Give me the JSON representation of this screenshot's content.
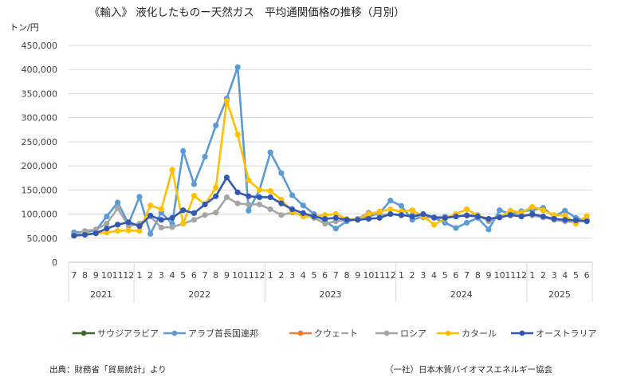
{
  "chart_data": {
    "type": "line",
    "title": "《輸入》 液化したものー天然ガス　平均通関価格の推移（月別）",
    "ylabel": "トン/円",
    "xlabel": "",
    "ylim": [
      0,
      450000
    ],
    "yticks": [
      "0",
      "50,000",
      "100,000",
      "150,000",
      "200,000",
      "250,000",
      "300,000",
      "350,000",
      "400,000",
      "450,000"
    ],
    "grid": "horizontal",
    "legend": "bottom",
    "year_groups": [
      {
        "label": "2021",
        "months": [
          "7",
          "8",
          "9",
          "10",
          "11",
          "12"
        ]
      },
      {
        "label": "2022",
        "months": [
          "1",
          "2",
          "3",
          "4",
          "5",
          "6",
          "7",
          "8",
          "9",
          "10",
          "11",
          "12"
        ]
      },
      {
        "label": "2023",
        "months": [
          "1",
          "2",
          "3",
          "4",
          "5",
          "6",
          "7",
          "8",
          "9",
          "10",
          "11",
          "12"
        ]
      },
      {
        "label": "2024",
        "months": [
          "1",
          "2",
          "3",
          "4",
          "5",
          "6",
          "7",
          "8",
          "9",
          "10",
          "11",
          "12"
        ]
      },
      {
        "label": "2025",
        "months": [
          "1",
          "2",
          "3",
          "4",
          "5",
          "6"
        ]
      }
    ],
    "series": [
      {
        "name": "サウジアラビア",
        "color": "#3e6b2a",
        "values": []
      },
      {
        "name": "アラブ首長国連邦",
        "color": "#5b9bd5",
        "values": [
          62000,
          63000,
          66000,
          95000,
          124000,
          80000,
          136000,
          59000,
          103000,
          80000,
          231000,
          162000,
          219000,
          284000,
          340000,
          405000,
          107000,
          150000,
          228000,
          185000,
          139000,
          118000,
          100000,
          85000,
          70000,
          85000,
          90000,
          95000,
          102000,
          128000,
          117000,
          88000,
          95000,
          92000,
          82000,
          71000,
          82000,
          92000,
          68000,
          108000,
          100000,
          106000,
          108000,
          113000,
          95000,
          107000,
          92000,
          86000
        ]
      },
      {
        "name": "クウェート",
        "color": "#ed7d31",
        "values": []
      },
      {
        "name": "ロシア",
        "color": "#a5a5a5",
        "values": [
          57000,
          65000,
          68000,
          80000,
          112000,
          75000,
          80000,
          95000,
          72000,
          73000,
          80000,
          88000,
          98000,
          103000,
          135000,
          122000,
          120000,
          120000,
          110000,
          98000,
          103000,
          98000,
          92000,
          80000,
          85000,
          87000,
          90000,
          103000,
          98000,
          100000,
          97000,
          98000,
          93000,
          93000,
          95000,
          95000,
          98000,
          98000,
          85000,
          95000,
          97000,
          98000,
          97000,
          93000,
          88000,
          85000,
          83000,
          88000
        ]
      },
      {
        "name": "カタール",
        "color": "#ffc000",
        "values": [
          55000,
          58000,
          60000,
          62000,
          65000,
          66000,
          65000,
          118000,
          110000,
          192000,
          80000,
          138000,
          120000,
          155000,
          335000,
          265000,
          170000,
          150000,
          148000,
          130000,
          105000,
          95000,
          95000,
          98000,
          100000,
          90000,
          88000,
          100000,
          105000,
          110000,
          105000,
          108000,
          95000,
          78000,
          90000,
          100000,
          110000,
          97000,
          90000,
          93000,
          107000,
          103000,
          115000,
          108000,
          98000,
          97000,
          80000,
          96000
        ]
      },
      {
        "name": "オーストラリア",
        "color": "#3158b4",
        "values": [
          55000,
          57000,
          60000,
          70000,
          78000,
          83000,
          75000,
          97000,
          88000,
          92000,
          108000,
          102000,
          120000,
          137000,
          176000,
          145000,
          137000,
          135000,
          135000,
          122000,
          110000,
          102000,
          95000,
          90000,
          92000,
          88000,
          88000,
          90000,
          92000,
          100000,
          98000,
          95000,
          100000,
          93000,
          92000,
          95000,
          97000,
          95000,
          90000,
          93000,
          98000,
          95000,
          100000,
          95000,
          90000,
          88000,
          87000,
          85000
        ]
      }
    ]
  },
  "footer": {
    "source": "出典：財務省「貿易統計」より",
    "publisher": "（一社）日本木質バイオマスエネルギー協会"
  }
}
